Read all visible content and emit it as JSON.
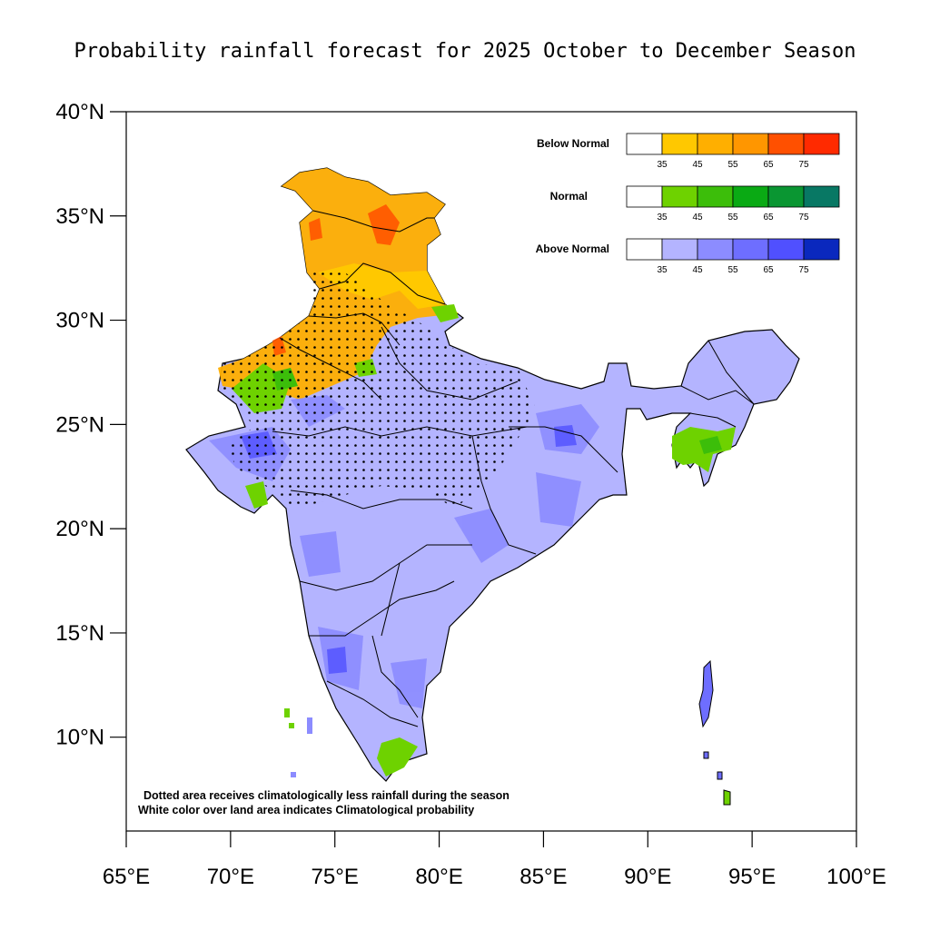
{
  "title": "Probability rainfall forecast for 2025 October to December Season",
  "axes": {
    "lat_labels": [
      "40°N",
      "35°N",
      "30°N",
      "25°N",
      "20°N",
      "15°N",
      "10°N"
    ],
    "lon_labels": [
      "65°E",
      "70°E",
      "75°E",
      "80°E",
      "85°E",
      "90°E",
      "95°E",
      "100°E"
    ],
    "lat_values": [
      40,
      35,
      30,
      25,
      20,
      15,
      10
    ],
    "lon_values": [
      65,
      70,
      75,
      80,
      85,
      90,
      95,
      100
    ],
    "lon_range": [
      65,
      100
    ],
    "lat_range": [
      5.5,
      40
    ]
  },
  "legend": [
    {
      "label": "Below Normal",
      "ticks": [
        "35",
        "45",
        "55",
        "65",
        "75"
      ],
      "colors": [
        "#ffffff",
        "#ffc800",
        "#ffaf00",
        "#ff9600",
        "#ff5000",
        "#ff2a00"
      ]
    },
    {
      "label": "Normal",
      "ticks": [
        "35",
        "45",
        "55",
        "65",
        "75"
      ],
      "colors": [
        "#ffffff",
        "#6ed200",
        "#3cbe0a",
        "#0aaa14",
        "#0a9632",
        "#087864"
      ]
    },
    {
      "label": "Above Normal",
      "ticks": [
        "35",
        "45",
        "55",
        "65",
        "75"
      ],
      "colors": [
        "#ffffff",
        "#b4b4ff",
        "#8c8cff",
        "#6e6eff",
        "#5050ff",
        "#0a28be"
      ]
    }
  ],
  "notes": [
    "Dotted area receives climatologically less rainfall during the season",
    "White color over land area indicates Climatological probability"
  ]
}
